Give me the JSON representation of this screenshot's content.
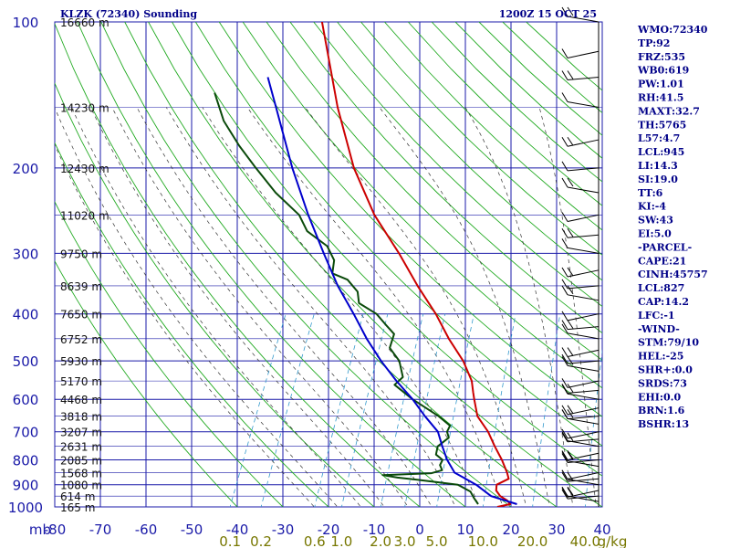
{
  "header": {
    "title": "KLZK (72340) Sounding",
    "datetime": "1200Z 15 OCT 25"
  },
  "colors": {
    "grid": "#1a1aa8",
    "axis_label": "#1a1aa8",
    "dry_adiabat": "#22aa22",
    "moist_adiabat": "#333333",
    "mixing_ratio": "#3399cc",
    "temperature": "#cc0000",
    "dewpoint": "#0a4a0a",
    "parcel": "#0000cc",
    "mixing_ratio_label": "#777700",
    "text": "#000088"
  },
  "chart_data": {
    "type": "line",
    "title": "KLZK (72340) Sounding",
    "xlabel": "",
    "ylabel": "mb",
    "x_unit_label": "g/kg",
    "xlim": [
      -80,
      40
    ],
    "ylim": [
      1000,
      100
    ],
    "y_scale": "log",
    "skew": "temperature isotherms skewed",
    "pressure_ticks": [
      "100",
      "200",
      "300",
      "400",
      "500",
      "600",
      "700",
      "800",
      "900",
      "1000"
    ],
    "temperature_ticks": [
      "-80",
      "-70",
      "-60",
      "-50",
      "-40",
      "-30",
      "-20",
      "-10",
      "0",
      "10",
      "20",
      "30",
      "40"
    ],
    "mixing_ratio_ticks": [
      "0.1",
      "0.2",
      "0.6",
      "1.0",
      "2.0",
      "3.0",
      "5.0",
      "10.0",
      "20.0",
      "40.0"
    ],
    "height_labels": [
      {
        "p": 100,
        "label": "16660 m"
      },
      {
        "p": 150,
        "label": "14230 m"
      },
      {
        "p": 200,
        "label": "12430 m"
      },
      {
        "p": 250,
        "label": "11020 m"
      },
      {
        "p": 300,
        "label": "9750 m"
      },
      {
        "p": 350,
        "label": "8639 m"
      },
      {
        "p": 400,
        "label": "7650 m"
      },
      {
        "p": 450,
        "label": "6752 m"
      },
      {
        "p": 500,
        "label": "5930 m"
      },
      {
        "p": 550,
        "label": "5170 m"
      },
      {
        "p": 600,
        "label": "4468 m"
      },
      {
        "p": 650,
        "label": "3818 m"
      },
      {
        "p": 700,
        "label": "3207 m"
      },
      {
        "p": 750,
        "label": "2631 m"
      },
      {
        "p": 800,
        "label": "2085 m"
      },
      {
        "p": 850,
        "label": "1568 m"
      },
      {
        "p": 900,
        "label": "1080 m"
      },
      {
        "p": 950,
        "label": "614 m"
      },
      {
        "p": 1000,
        "label": "165 m"
      }
    ],
    "series": [
      {
        "id": "temperature",
        "points": [
          [
            1000,
            17.0
          ],
          [
            987,
            19.5
          ],
          [
            970,
            18.5
          ],
          [
            950,
            16.5
          ],
          [
            925,
            15.0
          ],
          [
            900,
            14.5
          ],
          [
            875,
            16.5
          ],
          [
            850,
            15.5
          ],
          [
            800,
            13.0
          ],
          [
            750,
            10.0
          ],
          [
            700,
            7.0
          ],
          [
            650,
            3.0
          ],
          [
            600,
            0.5
          ],
          [
            580,
            -0.5
          ],
          [
            550,
            -2.0
          ],
          [
            500,
            -6.0
          ],
          [
            450,
            -11.5
          ],
          [
            400,
            -17.0
          ],
          [
            350,
            -24.0
          ],
          [
            300,
            -31.5
          ],
          [
            250,
            -41.0
          ],
          [
            200,
            -50.5
          ],
          [
            150,
            -60.5
          ],
          [
            100,
            -73.0
          ]
        ]
      },
      {
        "id": "dewpoint",
        "points": [
          [
            987,
            12.5
          ],
          [
            960,
            11.0
          ],
          [
            930,
            9.5
          ],
          [
            900,
            6.0
          ],
          [
            880,
            -3.0
          ],
          [
            870,
            -8.0
          ],
          [
            860,
            -11.5
          ],
          [
            852,
            -1.0
          ],
          [
            840,
            1.0
          ],
          [
            820,
            0.0
          ],
          [
            800,
            0.0
          ],
          [
            780,
            -2.0
          ],
          [
            750,
            -2.5
          ],
          [
            720,
            -1.0
          ],
          [
            700,
            -2.0
          ],
          [
            680,
            -2.0
          ],
          [
            650,
            -5.5
          ],
          [
            600,
            -13.0
          ],
          [
            560,
            -18.5
          ],
          [
            540,
            -17.5
          ],
          [
            500,
            -20.0
          ],
          [
            470,
            -23.5
          ],
          [
            440,
            -24.0
          ],
          [
            420,
            -27.0
          ],
          [
            400,
            -30.0
          ],
          [
            380,
            -35.0
          ],
          [
            360,
            -36.5
          ],
          [
            340,
            -40.0
          ],
          [
            330,
            -44.0
          ],
          [
            310,
            -45.0
          ],
          [
            290,
            -48.0
          ],
          [
            270,
            -54.0
          ],
          [
            250,
            -57.5
          ],
          [
            225,
            -65.0
          ],
          [
            200,
            -72.0
          ],
          [
            180,
            -78.0
          ],
          [
            160,
            -84.0
          ],
          [
            140,
            -89.0
          ]
        ]
      },
      {
        "id": "parcel",
        "points": [
          [
            987,
            21.0
          ],
          [
            950,
            14.5
          ],
          [
            900,
            10.0
          ],
          [
            850,
            4.0
          ],
          [
            800,
            1.0
          ],
          [
            750,
            -1.5
          ],
          [
            700,
            -4.0
          ],
          [
            650,
            -8.5
          ],
          [
            600,
            -13.0
          ],
          [
            550,
            -18.5
          ],
          [
            500,
            -24.0
          ],
          [
            450,
            -29.5
          ],
          [
            400,
            -35.0
          ],
          [
            350,
            -41.5
          ],
          [
            300,
            -48.0
          ],
          [
            250,
            -55.5
          ],
          [
            200,
            -64.0
          ],
          [
            150,
            -74.0
          ],
          [
            130,
            -79.0
          ]
        ]
      }
    ],
    "wind_barbs_present": true
  },
  "indices": [
    "WMO:72340",
    "TP:92",
    "FRZ:535",
    "WB0:619",
    "PW:1.01",
    "RH:41.5",
    "MAXT:32.7",
    "TH:5765",
    "L57:4.7",
    "LCL:945",
    "LI:14.3",
    "SI:19.0",
    "TT:6",
    "KI:-4",
    "SW:43",
    "EI:5.0",
    "-PARCEL-",
    "CAPE:21",
    "CINH:45757",
    "LCL:827",
    "CAP:14.2",
    "LFC:-1",
    "-WIND-",
    "STM:79/10",
    "HEL:-25",
    "SHR+:0.0",
    "SRDS:73",
    "EHI:0.0",
    "BRN:1.6",
    "BSHR:13"
  ]
}
